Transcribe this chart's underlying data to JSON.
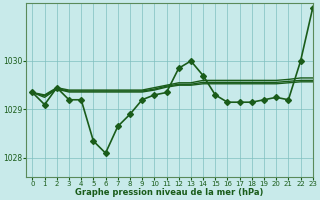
{
  "title": "Graphe pression niveau de la mer (hPa)",
  "background_color": "#c8eaea",
  "grid_color": "#7fbfbf",
  "line_color": "#1a5c1a",
  "xlim": [
    -0.5,
    23
  ],
  "ylim": [
    1027.6,
    1031.2
  ],
  "yticks": [
    1028,
    1029,
    1030
  ],
  "xticks": [
    0,
    1,
    2,
    3,
    4,
    5,
    6,
    7,
    8,
    9,
    10,
    11,
    12,
    13,
    14,
    15,
    16,
    17,
    18,
    19,
    20,
    21,
    22,
    23
  ],
  "series": [
    {
      "x": [
        0,
        1,
        2,
        3,
        4,
        5,
        6,
        7,
        8,
        9,
        10,
        11,
        12,
        13,
        14,
        15,
        16,
        17,
        18,
        19,
        20,
        21,
        22,
        23
      ],
      "y": [
        1029.35,
        1029.1,
        1029.45,
        1029.2,
        1029.2,
        1028.35,
        1028.1,
        1028.65,
        1028.9,
        1029.2,
        1029.3,
        1029.35,
        1029.85,
        1030.0,
        1029.7,
        1029.3,
        1029.15,
        1029.15,
        1029.15,
        1029.2,
        1029.25,
        1029.2,
        1030.0,
        1031.1
      ],
      "marker": "D",
      "markersize": 3.0,
      "linewidth": 1.2,
      "has_marker": true
    },
    {
      "x": [
        0,
        1,
        2,
        3,
        4,
        5,
        6,
        7,
        8,
        9,
        10,
        11,
        12,
        13,
        14,
        15,
        16,
        17,
        18,
        19,
        20,
        21,
        22,
        23
      ],
      "y": [
        1029.35,
        1029.3,
        1029.45,
        1029.4,
        1029.4,
        1029.4,
        1029.4,
        1029.4,
        1029.4,
        1029.4,
        1029.45,
        1029.5,
        1029.55,
        1029.55,
        1029.6,
        1029.6,
        1029.6,
        1029.6,
        1029.6,
        1029.6,
        1029.6,
        1029.62,
        1029.65,
        1029.65
      ],
      "marker": null,
      "markersize": 0,
      "linewidth": 1.0,
      "has_marker": false
    },
    {
      "x": [
        0,
        1,
        2,
        3,
        4,
        5,
        6,
        7,
        8,
        9,
        10,
        11,
        12,
        13,
        14,
        15,
        16,
        17,
        18,
        19,
        20,
        21,
        22,
        23
      ],
      "y": [
        1029.35,
        1029.28,
        1029.43,
        1029.38,
        1029.38,
        1029.38,
        1029.38,
        1029.38,
        1029.38,
        1029.38,
        1029.42,
        1029.48,
        1029.52,
        1029.52,
        1029.56,
        1029.56,
        1029.56,
        1029.56,
        1029.56,
        1029.56,
        1029.56,
        1029.58,
        1029.6,
        1029.6
      ],
      "marker": null,
      "markersize": 0,
      "linewidth": 1.0,
      "has_marker": false
    },
    {
      "x": [
        0,
        1,
        2,
        3,
        4,
        5,
        6,
        7,
        8,
        9,
        10,
        11,
        12,
        13,
        14,
        15,
        16,
        17,
        18,
        19,
        20,
        21,
        22,
        23
      ],
      "y": [
        1029.35,
        1029.25,
        1029.42,
        1029.36,
        1029.36,
        1029.36,
        1029.36,
        1029.36,
        1029.36,
        1029.36,
        1029.4,
        1029.46,
        1029.5,
        1029.5,
        1029.53,
        1029.53,
        1029.53,
        1029.53,
        1029.53,
        1029.53,
        1029.53,
        1029.55,
        1029.57,
        1029.57
      ],
      "marker": null,
      "markersize": 0,
      "linewidth": 1.0,
      "has_marker": false
    }
  ]
}
